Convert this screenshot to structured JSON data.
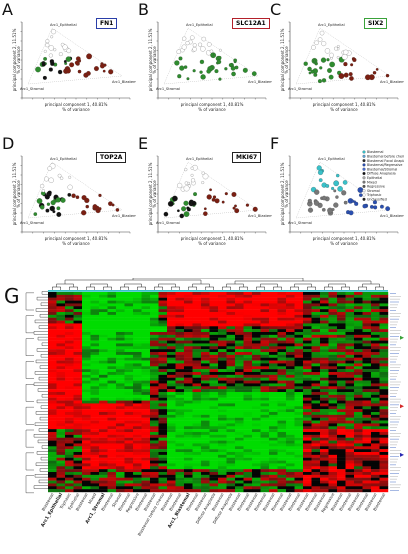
{
  "panels": [
    {
      "letter": "A",
      "gene": "FN1",
      "gene_border": "#2a3ea8",
      "xlabel": "principal component 1, 40.81%\n% of variance",
      "ylabel": "principal component 2, 11.51%\n% of variance",
      "annotations": [
        "Arc1_Epithelial",
        "Arc1_Blastemal",
        "Arc1_Stromal"
      ]
    },
    {
      "letter": "B",
      "gene": "SLC12A1",
      "gene_border": "#b3202a",
      "xlabel": "principal component 1, 40.81%\n% of variance",
      "ylabel": "principal component 2, 11.51%\n% of variance",
      "annotations": [
        "Arc1_Epithelial",
        "Arc1_Blastemal",
        "Arc1_Stromal"
      ]
    },
    {
      "letter": "C",
      "gene": "SIX2",
      "gene_border": "#3aa23a",
      "xlabel": "principal component 1, 40.81%\n% of variance",
      "ylabel": "principal component 2, 11.51%\n% of variance",
      "annotations": [
        "Arc1_Epithelial",
        "Arc1_Blastemal",
        "Arc1_Stromal"
      ]
    },
    {
      "letter": "D",
      "gene": "TOP2A",
      "gene_border": "#222222",
      "xlabel": "principal component 1, 40.81%\n% of variance",
      "ylabel": "principal component 2, 11.51%\n% of variance",
      "annotations": [
        "Arc1_Epithelial",
        "Arc1_Blastemal",
        "Arc1_Stromal"
      ]
    },
    {
      "letter": "E",
      "gene": "MKI67",
      "gene_border": "#222222",
      "xlabel": "principal component 1, 40.81%\n% of variance",
      "ylabel": "principal component 2, 11.51%\n% of variance",
      "annotations": [
        "Arc1_Epithelial",
        "Arc1_Blastemal",
        "Arc1_Stromal"
      ]
    },
    {
      "letter": "F",
      "gene": "",
      "gene_border": "",
      "xlabel": "principal component 1, 40.81%\n% of variance",
      "ylabel": "principal component 2, 11.51%\n% of variance",
      "annotations": [
        "Arc1_Epithelial",
        "Arc1_Blastemal",
        "Arc1_Stromal"
      ]
    }
  ],
  "legend": [
    "Blastemal",
    "Blastemal before chemo",
    "Blastemal Focal Anaplasia",
    "Blastemal/Regressive",
    "Blastemal/Stromal",
    "Diffuse Anaplasia",
    "Epithelial",
    "Mixed",
    "Regressive",
    "Stromal",
    "Triphasic",
    "Unclassified"
  ],
  "heatmap_label": "G",
  "column_labels": [
    "Blastemal",
    "Arc1_Epithelial",
    "Triphasic",
    "Epithelial",
    "Blastemal",
    "Mixed",
    "Arc1_Stromal",
    "Blastemal",
    "Stromal",
    "Blastemal",
    "Regressive",
    "Blastemal",
    "Blastemal",
    "Blastemal before chemo",
    "Blastemal",
    "Blastemal",
    "Arc1_Blastemal",
    "Blastemal",
    "Blastemal",
    "Diffuse Anaplasia",
    "Blastemal",
    "Diffuse Anaplasia",
    "Blastemal",
    "Blastemal",
    "Blastemal",
    "Blastemal",
    "Blastemal",
    "Blastemal",
    "Blastemal",
    "Blastemal",
    "Blastemal",
    "Blastemal",
    "Blastemal",
    "Regressive",
    "Blastemal",
    "Blastemal",
    "Blastemal",
    "Blastemal",
    "Blastemal",
    "Blastemal"
  ],
  "colors": {
    "high": "#e21a1a",
    "low": "#1bd41b",
    "mid": "#000000",
    "epi": "#39c1c9",
    "blastemal_dot": "#7a1f12",
    "stromal_dot": "#2e8b2e"
  }
}
